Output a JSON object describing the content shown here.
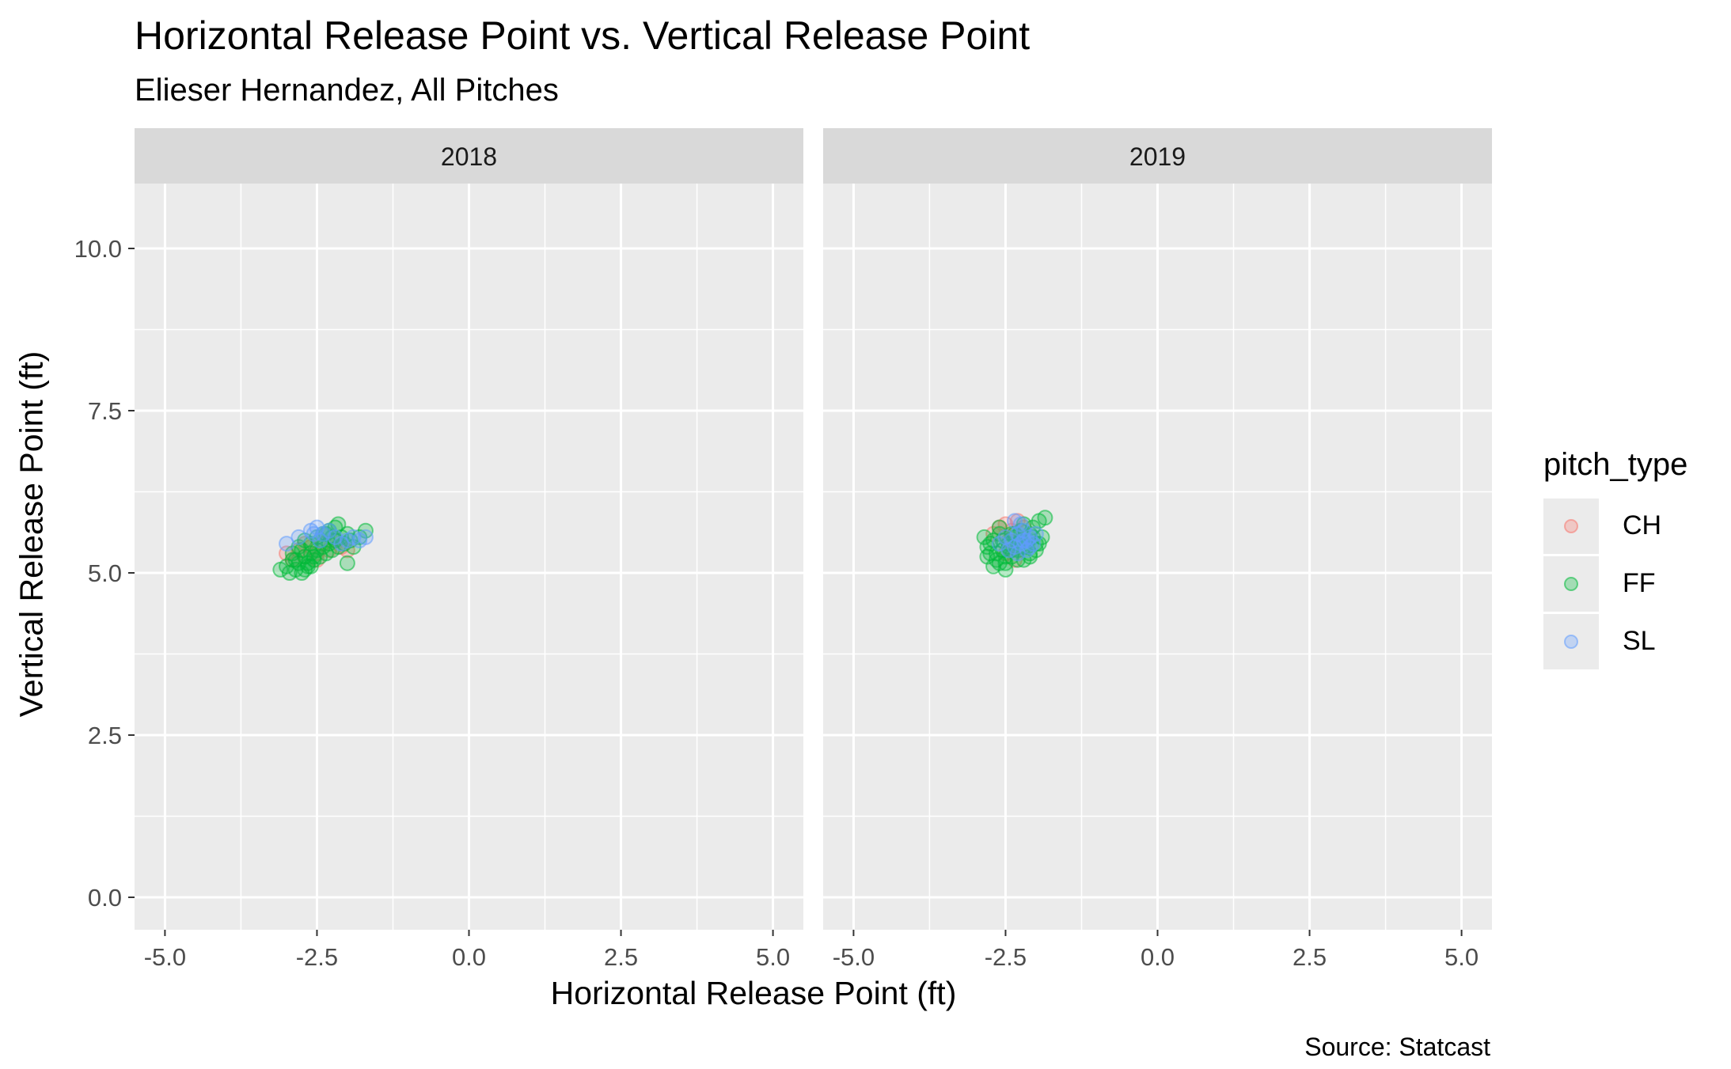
{
  "chart_data": {
    "type": "scatter",
    "title": "Horizontal Release Point vs. Vertical Release Point",
    "subtitle": "Elieser Hernandez, All Pitches",
    "xlabel": "Horizontal Release Point (ft)",
    "ylabel": "Vertical Release Point (ft)",
    "caption": "Source: Statcast",
    "xlim": [
      -5.5,
      5.5
    ],
    "ylim": [
      -0.5,
      11
    ],
    "x_ticks": [
      "-5.0",
      "-2.5",
      "0.0",
      "2.5",
      "5.0"
    ],
    "y_ticks": [
      "0.0",
      "2.5",
      "5.0",
      "7.5",
      "10.0"
    ],
    "grid": true,
    "legend": {
      "title": "pitch_type",
      "placement": "right",
      "entries": [
        {
          "name": "CH",
          "color": "#f8766d"
        },
        {
          "name": "FF",
          "color": "#00ba38"
        },
        {
          "name": "SL",
          "color": "#619cff"
        }
      ]
    },
    "panels": [
      {
        "label": "2018",
        "series": [
          {
            "name": "CH",
            "color": "#f8766d",
            "x": [
              -3.0,
              -2.9,
              -2.8,
              -2.7,
              -2.6,
              -2.5,
              -2.4,
              -2.3,
              -2.2,
              -2.1,
              -2.0,
              -2.5,
              -2.7
            ],
            "y": [
              5.3,
              5.2,
              5.35,
              5.25,
              5.4,
              5.3,
              5.45,
              5.35,
              5.5,
              5.4,
              5.35,
              5.2,
              5.45
            ]
          },
          {
            "name": "FF",
            "color": "#00ba38",
            "x": [
              -3.1,
              -3.0,
              -2.95,
              -2.9,
              -2.85,
              -2.8,
              -2.75,
              -2.7,
              -2.65,
              -2.6,
              -2.55,
              -2.5,
              -2.45,
              -2.4,
              -2.35,
              -2.3,
              -2.25,
              -2.2,
              -2.15,
              -2.1,
              -2.05,
              -2.0,
              -1.95,
              -1.9,
              -1.8,
              -1.7,
              -2.9,
              -2.8,
              -2.7,
              -2.6,
              -2.5,
              -2.4,
              -2.3,
              -2.2,
              -2.85,
              -2.75,
              -2.65,
              -2.55,
              -2.45,
              -2.35,
              -2.25,
              -2.15,
              -2.0,
              -2.7,
              -2.6
            ],
            "y": [
              5.05,
              5.1,
              5.0,
              5.2,
              5.05,
              5.15,
              5.0,
              5.25,
              5.1,
              5.3,
              5.2,
              5.35,
              5.25,
              5.4,
              5.3,
              5.45,
              5.35,
              5.5,
              5.4,
              5.55,
              5.45,
              5.6,
              5.5,
              5.4,
              5.55,
              5.65,
              5.3,
              5.4,
              5.5,
              5.45,
              5.55,
              5.6,
              5.65,
              5.7,
              5.2,
              5.35,
              5.15,
              5.25,
              5.5,
              5.6,
              5.55,
              5.75,
              5.15,
              5.05,
              5.1
            ]
          },
          {
            "name": "SL",
            "color": "#619cff",
            "x": [
              -3.0,
              -2.8,
              -2.6,
              -2.5,
              -2.4,
              -2.2,
              -2.0,
              -1.9,
              -1.8,
              -1.7,
              -2.3,
              -2.1,
              -2.55,
              -2.45
            ],
            "y": [
              5.45,
              5.55,
              5.65,
              5.7,
              5.6,
              5.55,
              5.5,
              5.55,
              5.5,
              5.55,
              5.65,
              5.45,
              5.6,
              5.5
            ]
          }
        ]
      },
      {
        "label": "2019",
        "series": [
          {
            "name": "CH",
            "color": "#f8766d",
            "x": [
              -2.7,
              -2.6,
              -2.5,
              -2.4,
              -2.3,
              -2.2,
              -2.5,
              -2.35,
              -2.45
            ],
            "y": [
              5.6,
              5.7,
              5.75,
              5.65,
              5.8,
              5.7,
              5.3,
              5.2,
              5.5
            ]
          },
          {
            "name": "FF",
            "color": "#00ba38",
            "x": [
              -2.85,
              -2.8,
              -2.75,
              -2.7,
              -2.65,
              -2.6,
              -2.55,
              -2.5,
              -2.45,
              -2.4,
              -2.35,
              -2.3,
              -2.25,
              -2.2,
              -2.15,
              -2.1,
              -2.05,
              -2.0,
              -1.95,
              -1.9,
              -1.85,
              -2.8,
              -2.7,
              -2.6,
              -2.5,
              -2.4,
              -2.3,
              -2.2,
              -2.1,
              -2.0,
              -2.75,
              -2.65,
              -2.55,
              -2.45,
              -2.35,
              -2.25,
              -2.15,
              -2.05,
              -1.95,
              -2.6,
              -2.5,
              -2.4,
              -2.3,
              -2.2,
              -2.1
            ],
            "y": [
              5.55,
              5.4,
              5.3,
              5.5,
              5.2,
              5.6,
              5.35,
              5.15,
              5.45,
              5.25,
              5.55,
              5.35,
              5.65,
              5.4,
              5.5,
              5.3,
              5.7,
              5.45,
              5.8,
              5.55,
              5.85,
              5.25,
              5.1,
              5.7,
              5.05,
              5.6,
              5.2,
              5.75,
              5.25,
              5.35,
              5.45,
              5.3,
              5.5,
              5.4,
              5.6,
              5.5,
              5.4,
              5.55,
              5.45,
              5.15,
              5.25,
              5.35,
              5.45,
              5.2,
              5.6
            ]
          },
          {
            "name": "SL",
            "color": "#619cff",
            "x": [
              -2.6,
              -2.5,
              -2.4,
              -2.35,
              -2.3,
              -2.25,
              -2.2,
              -2.15,
              -2.1,
              -2.05,
              -2.0,
              -2.3,
              -2.2,
              -2.1,
              -2.25,
              -2.15,
              -2.35,
              -2.45
            ],
            "y": [
              5.45,
              5.55,
              5.5,
              5.4,
              5.6,
              5.45,
              5.5,
              5.35,
              5.55,
              5.45,
              5.6,
              5.3,
              5.65,
              5.4,
              5.75,
              5.5,
              5.8,
              5.35
            ]
          }
        ]
      }
    ]
  }
}
